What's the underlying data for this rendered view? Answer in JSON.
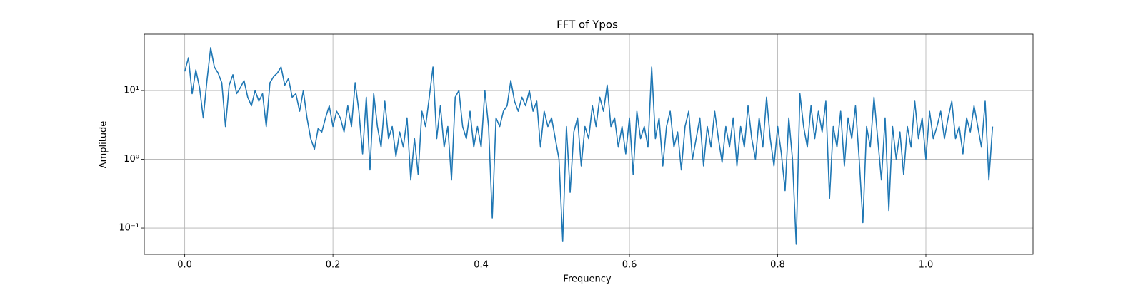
{
  "chart_data": {
    "type": "line",
    "title": "FFT of Ypos",
    "x_label": "Frequency",
    "y_label": "Amplitude",
    "log_y": true,
    "grid": true,
    "xlim": [
      -0.0546,
      1.1446
    ],
    "ylim": [
      0.0414,
      66
    ],
    "xticks": [
      {
        "value": 0,
        "label": "0.0"
      },
      0.2,
      0.4,
      0.6,
      0.8,
      {
        "value": 1,
        "label": "1.0"
      }
    ],
    "yticks": [
      {
        "value": 0.1,
        "label": "10⁻¹"
      },
      {
        "value": 1,
        "label": "10⁰"
      },
      {
        "value": 10,
        "label": "10¹"
      }
    ],
    "series": [
      {
        "name": "Ypos",
        "color": "#1f77b4",
        "x": [
          0,
          0.005,
          0.01,
          0.015,
          0.02,
          0.025,
          0.03,
          0.035,
          0.04,
          0.045,
          0.05,
          0.055,
          0.06,
          0.065,
          0.07,
          0.075,
          0.08,
          0.085,
          0.09,
          0.095,
          0.1,
          0.105,
          0.11,
          0.115,
          0.12,
          0.125,
          0.13,
          0.135,
          0.14,
          0.145,
          0.15,
          0.155,
          0.16,
          0.165,
          0.17,
          0.175,
          0.18,
          0.185,
          0.19,
          0.195,
          0.2,
          0.205,
          0.21,
          0.215,
          0.22,
          0.225,
          0.23,
          0.235,
          0.24,
          0.245,
          0.25,
          0.255,
          0.26,
          0.265,
          0.27,
          0.275,
          0.28,
          0.285,
          0.29,
          0.295,
          0.3,
          0.305,
          0.31,
          0.315,
          0.32,
          0.325,
          0.33,
          0.335,
          0.34,
          0.345,
          0.35,
          0.355,
          0.36,
          0.365,
          0.37,
          0.375,
          0.38,
          0.385,
          0.39,
          0.395,
          0.4,
          0.405,
          0.41,
          0.415,
          0.42,
          0.425,
          0.43,
          0.435,
          0.44,
          0.445,
          0.45,
          0.455,
          0.46,
          0.465,
          0.47,
          0.475,
          0.48,
          0.485,
          0.49,
          0.495,
          0.5,
          0.505,
          0.51,
          0.515,
          0.52,
          0.525,
          0.53,
          0.535,
          0.54,
          0.545,
          0.55,
          0.555,
          0.56,
          0.565,
          0.57,
          0.575,
          0.58,
          0.585,
          0.59,
          0.595,
          0.6,
          0.605,
          0.61,
          0.615,
          0.62,
          0.625,
          0.63,
          0.635,
          0.64,
          0.645,
          0.65,
          0.655,
          0.66,
          0.665,
          0.67,
          0.675,
          0.68,
          0.685,
          0.69,
          0.695,
          0.7,
          0.705,
          0.71,
          0.715,
          0.72,
          0.725,
          0.73,
          0.735,
          0.74,
          0.745,
          0.75,
          0.755,
          0.76,
          0.765,
          0.77,
          0.775,
          0.78,
          0.785,
          0.79,
          0.795,
          0.8,
          0.805,
          0.81,
          0.815,
          0.82,
          0.825,
          0.83,
          0.835,
          0.84,
          0.845,
          0.85,
          0.855,
          0.86,
          0.865,
          0.87,
          0.875,
          0.88,
          0.885,
          0.89,
          0.895,
          0.9,
          0.905,
          0.91,
          0.915,
          0.92,
          0.925,
          0.93,
          0.935,
          0.94,
          0.945,
          0.95,
          0.955,
          0.96,
          0.965,
          0.97,
          0.975,
          0.98,
          0.985,
          0.99,
          0.995,
          1,
          1.005,
          1.01,
          1.015,
          1.02,
          1.025,
          1.03,
          1.035,
          1.04,
          1.045,
          1.05,
          1.055,
          1.06,
          1.065,
          1.07,
          1.075,
          1.08,
          1.085,
          1.09
        ],
        "values": [
          19,
          30,
          9,
          20,
          11,
          4,
          14,
          42,
          22,
          18,
          13,
          3,
          12,
          17,
          9,
          11,
          14,
          8,
          6,
          10,
          7,
          9,
          3,
          13,
          16,
          18,
          22,
          12,
          15,
          8,
          9,
          5,
          10,
          4,
          2,
          1.4,
          2.8,
          2.5,
          4,
          6,
          3,
          5,
          4,
          2.5,
          6,
          3,
          13,
          5,
          1.2,
          8,
          0.7,
          9,
          3,
          1.5,
          7,
          2,
          3,
          1.1,
          2.5,
          1.5,
          4,
          0.5,
          2,
          0.6,
          5,
          3,
          8,
          22,
          2,
          6,
          1.5,
          3,
          0.5,
          8,
          10,
          3,
          2,
          5,
          1.5,
          3,
          1.5,
          10,
          3,
          0.14,
          4,
          3,
          5,
          6,
          14,
          7,
          5,
          8,
          6,
          10,
          5,
          7,
          1.5,
          5,
          3,
          4,
          2,
          1,
          0.065,
          3,
          0.33,
          2.5,
          4,
          0.8,
          3,
          2,
          6,
          3,
          8,
          5,
          12,
          3,
          4,
          1.5,
          3,
          1.2,
          4,
          0.6,
          5,
          2,
          3,
          1.5,
          22,
          2,
          4,
          0.8,
          3,
          5,
          1.5,
          2.5,
          0.7,
          3,
          5,
          1,
          2,
          4,
          0.8,
          3,
          1.5,
          5,
          2,
          0.9,
          3,
          1.5,
          4,
          0.8,
          3,
          1.5,
          6,
          2,
          1,
          4,
          1.5,
          8,
          2,
          0.8,
          3,
          1.2,
          0.35,
          4,
          1,
          0.058,
          9,
          3,
          1.5,
          6,
          2,
          5,
          2.5,
          7,
          0.27,
          3,
          1.5,
          5,
          0.8,
          4,
          2,
          6,
          1,
          0.12,
          3,
          1.5,
          8,
          2,
          0.5,
          4,
          0.18,
          3,
          1,
          2.5,
          0.6,
          3,
          1.5,
          7,
          2,
          4,
          1,
          5,
          2,
          3,
          5,
          2,
          4,
          7,
          2,
          3,
          1.2,
          4,
          2.5,
          6,
          3,
          1.5,
          7,
          0.5,
          3
        ]
      }
    ]
  }
}
